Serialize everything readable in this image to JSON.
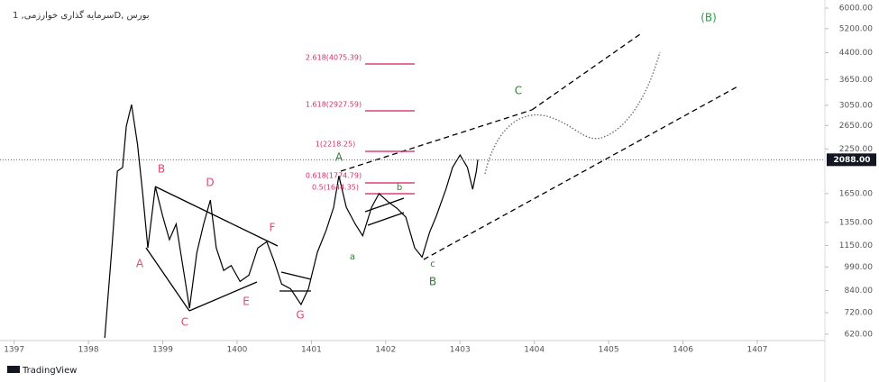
{
  "chart_data": {
    "type": "line",
    "title": "سرمایه گذاری خوارزمی, 1D, بورس",
    "brand": "TradingView",
    "price_label": "2088.00",
    "log_scale": true,
    "series": [
      {
        "color": "#000000",
        "x": [
          1398.22,
          1398.32,
          1398.39,
          1398.46,
          1398.51,
          1398.58,
          1398.66,
          1398.73,
          1398.8,
          1398.9,
          1399.0,
          1399.09,
          1399.18,
          1399.26,
          1399.36,
          1399.46,
          1399.55,
          1399.64,
          1399.72,
          1399.82,
          1399.92,
          1400.04,
          1400.16,
          1400.28,
          1400.4,
          1400.5,
          1400.6,
          1400.72,
          1400.86,
          1400.96,
          1401.08,
          1401.2,
          1401.3,
          1401.37,
          1401.47,
          1401.59,
          1401.69,
          1401.81,
          1401.91,
          1402.03,
          1402.15,
          1402.27,
          1402.39,
          1402.49,
          1402.59,
          1402.68,
          1402.81,
          1402.9,
          1403.0,
          1403.1,
          1403.17,
          1403.22,
          1403.24
        ],
        "values": [
          604,
          1167,
          1928,
          1980,
          2636,
          3065,
          2328,
          1648,
          1130,
          1730,
          1409,
          1197,
          1335,
          1028,
          743,
          1096,
          1335,
          1577,
          1130,
          966,
          1000,
          895,
          935,
          1130,
          1180,
          1028,
          879,
          850,
          762,
          850,
          1096,
          1280,
          1500,
          1866,
          1500,
          1335,
          1230,
          1500,
          1650,
          1560,
          1490,
          1400,
          1130,
          1060,
          1260,
          1409,
          1700,
          1980,
          2158,
          1980,
          1700,
          1928,
          2088
        ]
      }
    ],
    "xlim": [
      1396.81,
      1407.91
    ],
    "ylim": [
      593,
      6350
    ],
    "xticks": [
      1397,
      1398,
      1399,
      1400,
      1401,
      1402,
      1403,
      1404,
      1405,
      1406,
      1407
    ],
    "yticks": [
      {
        "value": 620,
        "label": "620.00"
      },
      {
        "value": 720,
        "label": "720.00"
      },
      {
        "value": 840,
        "label": "840.00"
      },
      {
        "value": 990,
        "label": "990.00"
      },
      {
        "value": 1150,
        "label": "1150.00"
      },
      {
        "value": 1350,
        "label": "1350.00"
      },
      {
        "value": 1650,
        "label": "1650.00"
      },
      {
        "value": 2250,
        "label": "2250.00"
      },
      {
        "value": 2650,
        "label": "2650.00"
      },
      {
        "value": 3050,
        "label": "3050.00"
      },
      {
        "value": 3650,
        "label": "3650.00"
      },
      {
        "value": 4400,
        "label": "4400.00"
      },
      {
        "value": 5200,
        "label": "5200.00"
      },
      {
        "value": 6000,
        "label": "6000.00"
      }
    ],
    "wave_labels": [
      "A",
      "B",
      "C",
      "D",
      "E",
      "F",
      "G",
      "A",
      "a",
      "b",
      "c",
      "B",
      "C",
      "(B)"
    ],
    "fib_labels": [
      "2.618(4075.39)",
      "1.618(2927.59)",
      "1(2218.25)",
      "0.618(1774.79)",
      "0.5(1644.35)"
    ]
  }
}
